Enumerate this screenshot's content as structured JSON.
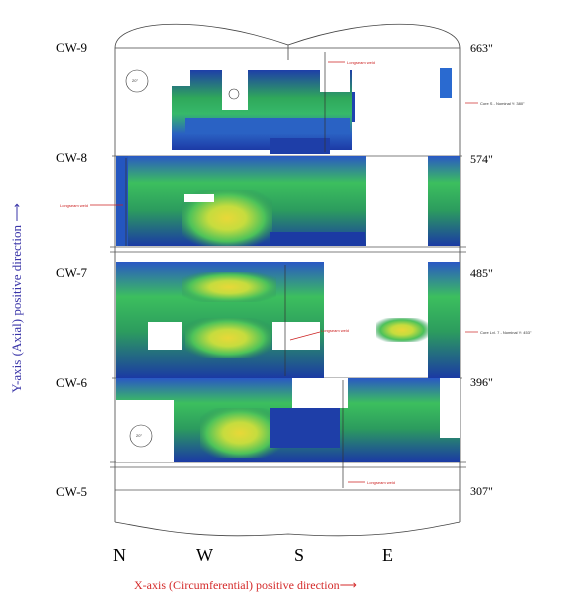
{
  "levels": [
    {
      "id": "CW-9",
      "position": "663\""
    },
    {
      "id": "CW-8",
      "position": "574\""
    },
    {
      "id": "CW-7",
      "position": "485\""
    },
    {
      "id": "CW-6",
      "position": "396\""
    },
    {
      "id": "CW-5",
      "position": "307\""
    }
  ],
  "directions": [
    "N",
    "W",
    "S",
    "E"
  ],
  "axes": {
    "y_label": "Y-axis (Axial) positive direction",
    "x_label": "X-axis (Circumferential) positive direction"
  },
  "annotations": {
    "longseam_top": "Longseam weld",
    "longseam_left": "Longseam weld",
    "longseam_mid": "Longseam weld",
    "longseam_bottom": "Longseam weld",
    "core_upper": "Core S - Nominal Y: 380\"",
    "core_lower": "Core Lvl. 7 - Nominal Y: 453\"",
    "marker_top": "20°",
    "marker_bottom": "20°"
  },
  "colors": {
    "blue": "#1e44b8",
    "green": "#2fb55a",
    "yellow": "#d8e23a",
    "red_label": "#d42a2a",
    "axis_blue": "#3a35a8"
  }
}
